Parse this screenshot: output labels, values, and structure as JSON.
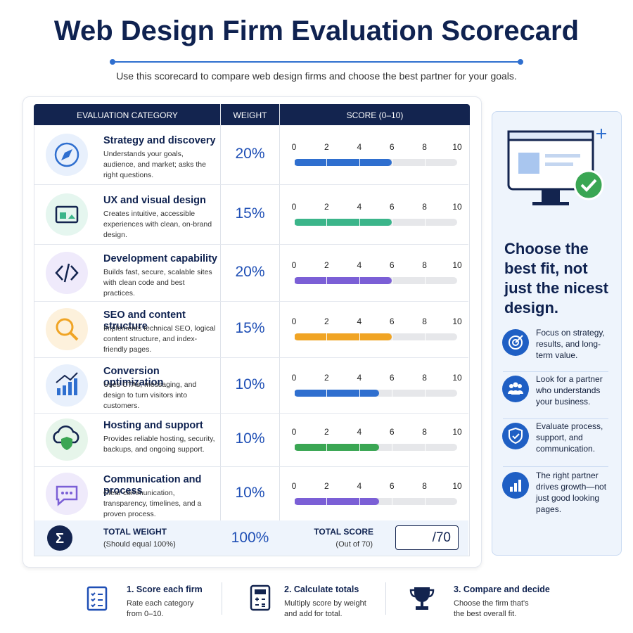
{
  "header": {
    "title": "Web Design Firm Evaluation Scorecard",
    "subtitle": "Use this scorecard to compare web design firms and choose the best partner for your goals."
  },
  "table": {
    "columns": [
      "EVALUATION CATEGORY",
      "WEIGHT",
      "SCORE (0–10)"
    ],
    "score_range": [
      0,
      10
    ],
    "score_ticks": [
      0,
      2,
      4,
      6,
      8,
      10
    ],
    "rows": [
      {
        "title": "Strategy and discovery",
        "description": "Understands your goals, audience, and market; asks the right questions.",
        "weight": "20%",
        "score": 6,
        "color": "#2f6fcf"
      },
      {
        "title": "UX and visual design",
        "description": "Creates intuitive, accessible experiences with clean, on-brand design.",
        "weight": "15%",
        "score": 6,
        "color": "#3bb58a"
      },
      {
        "title": "Development capability",
        "description": "Builds fast, secure, scalable sites with clean code and best practices.",
        "weight": "20%",
        "score": 6,
        "color": "#7b5fd6"
      },
      {
        "title": "SEO and content structure",
        "description": "Implements technical SEO, logical content structure, and index-friendly pages.",
        "weight": "15%",
        "score": 6,
        "color": "#f0a424"
      },
      {
        "title": "Conversion optimization",
        "description": "Uses CTAs, messaging, and design to turn visitors into customers.",
        "weight": "10%",
        "score": 5.2,
        "color": "#2f6fcf"
      },
      {
        "title": "Hosting and support",
        "description": "Provides reliable hosting, security, backups, and ongoing support.",
        "weight": "10%",
        "score": 5.2,
        "color": "#3aa653"
      },
      {
        "title": "Communication and process",
        "description": "Clear communication, transparency, timelines, and a proven process.",
        "weight": "10%",
        "score": 5.2,
        "color": "#7b5fd6"
      }
    ],
    "total": {
      "label": "TOTAL WEIGHT",
      "note": "(Should equal 100%)",
      "weight": "100%",
      "score_label": "TOTAL SCORE",
      "score_note": "(Out of 70)",
      "score_box": "/70"
    }
  },
  "sidebar": {
    "heading": "Choose the best fit, not just the nicest design.",
    "bullets": [
      "Focus on strategy, results, and long-term value.",
      "Look for a partner who understands your business.",
      "Evaluate process, support, and communication.",
      "The right partner drives growth—not just good looking pages."
    ]
  },
  "steps": [
    {
      "title": "1. Score each firm",
      "text": "Rate each category from 0–10."
    },
    {
      "title": "2. Calculate totals",
      "text": "Multiply score by weight and add for total."
    },
    {
      "title": "3. Compare and decide",
      "text": "Choose the firm that's the best overall fit."
    }
  ]
}
